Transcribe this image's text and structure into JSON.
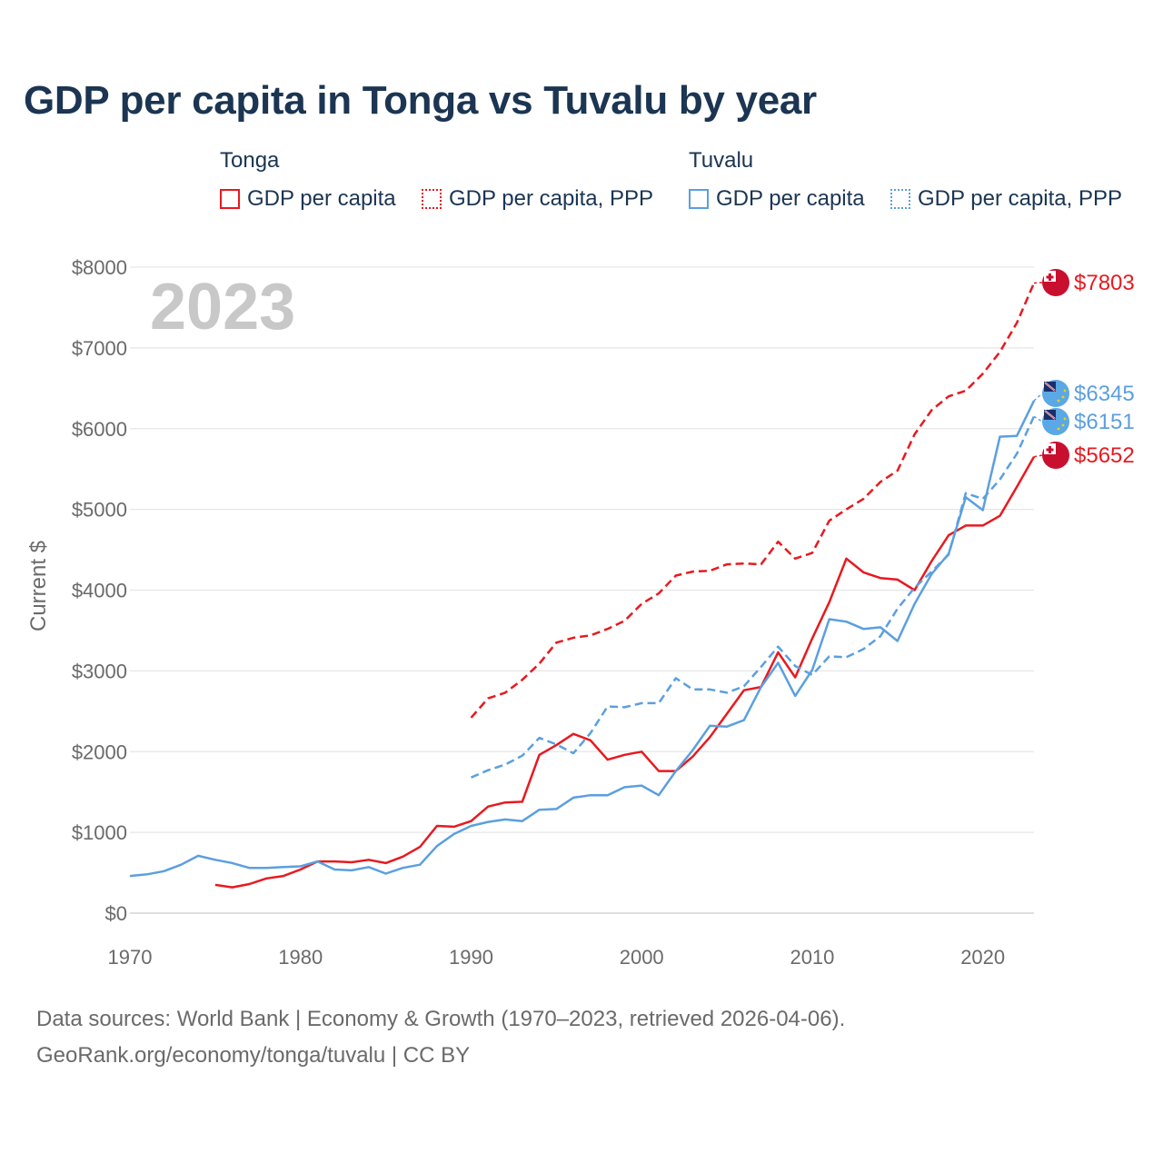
{
  "title": "GDP per capita in Tonga vs Tuvalu by year",
  "legend": {
    "tonga_title": "Tonga",
    "tuvalu_title": "Tuvalu",
    "tonga_gdp": "GDP per capita",
    "tonga_ppp": "GDP per capita, PPP",
    "tuvalu_gdp": "GDP per capita",
    "tuvalu_ppp": "GDP per capita, PPP"
  },
  "footer": {
    "line1": "Data sources: World Bank | Economy & Growth (1970–2023, retrieved 2026-04-06).",
    "line2": "GeoRank.org/economy/tonga/tuvalu | CC BY"
  },
  "colors": {
    "tonga": "#e8191f",
    "tuvalu": "#5b9fe0",
    "grid": "#e6e6e6",
    "axis_text": "#6a6a6a",
    "year_watermark": "#c8c8c8"
  },
  "icons": {
    "tonga_flag": "tonga-flag-icon",
    "tuvalu_flag": "tuvalu-flag-icon"
  },
  "chart_data": {
    "type": "line",
    "title": "GDP per capita in Tonga vs Tuvalu by year",
    "xlabel": "",
    "ylabel": "Current $",
    "year_label": "2023",
    "xlim": [
      1970,
      2023
    ],
    "ylim": [
      0,
      8000
    ],
    "x_ticks": [
      1970,
      1980,
      1990,
      2000,
      2010,
      2020
    ],
    "y_ticks": [
      0,
      1000,
      2000,
      3000,
      4000,
      5000,
      6000,
      7000,
      8000
    ],
    "y_tick_labels": [
      "$0",
      "$1000",
      "$2000",
      "$3000",
      "$4000",
      "$5000",
      "$6000",
      "$7000",
      "$8000"
    ],
    "grid": true,
    "series": [
      {
        "name": "Tonga GDP per capita",
        "country": "Tonga",
        "style": "solid",
        "end_label": "$5652",
        "x": [
          1975,
          1976,
          1977,
          1978,
          1979,
          1980,
          1981,
          1982,
          1983,
          1984,
          1985,
          1986,
          1987,
          1988,
          1989,
          1990,
          1991,
          1992,
          1993,
          1994,
          1995,
          1996,
          1997,
          1998,
          1999,
          2000,
          2001,
          2002,
          2003,
          2004,
          2005,
          2006,
          2007,
          2008,
          2009,
          2010,
          2011,
          2012,
          2013,
          2014,
          2015,
          2016,
          2017,
          2018,
          2019,
          2020,
          2021,
          2022,
          2023
        ],
        "values": [
          350,
          320,
          360,
          430,
          460,
          540,
          640,
          640,
          630,
          660,
          620,
          700,
          820,
          1080,
          1070,
          1140,
          1320,
          1370,
          1380,
          1960,
          2080,
          2220,
          2140,
          1900,
          1960,
          2000,
          1760,
          1760,
          1940,
          2180,
          2470,
          2760,
          2800,
          3230,
          2920,
          3400,
          3850,
          4390,
          4220,
          4150,
          4130,
          4000,
          4360,
          4680,
          4800,
          4800,
          4920,
          5280,
          5652
        ]
      },
      {
        "name": "Tonga GDP per capita, PPP",
        "country": "Tonga",
        "style": "dashed",
        "end_label": "$7803",
        "x": [
          1990,
          1991,
          1992,
          1993,
          1994,
          1995,
          1996,
          1997,
          1998,
          1999,
          2000,
          2001,
          2002,
          2003,
          2004,
          2005,
          2006,
          2007,
          2008,
          2009,
          2010,
          2011,
          2012,
          2013,
          2014,
          2015,
          2016,
          2017,
          2018,
          2019,
          2020,
          2021,
          2022,
          2023
        ],
        "values": [
          2420,
          2660,
          2730,
          2890,
          3090,
          3350,
          3410,
          3440,
          3520,
          3620,
          3830,
          3960,
          4180,
          4230,
          4240,
          4320,
          4330,
          4320,
          4600,
          4390,
          4460,
          4860,
          5000,
          5130,
          5340,
          5480,
          5930,
          6230,
          6400,
          6470,
          6680,
          6950,
          7310,
          7803
        ]
      },
      {
        "name": "Tuvalu GDP per capita",
        "country": "Tuvalu",
        "style": "solid",
        "end_label": "$6345",
        "x": [
          1970,
          1971,
          1972,
          1973,
          1974,
          1975,
          1976,
          1977,
          1978,
          1979,
          1980,
          1981,
          1982,
          1983,
          1984,
          1985,
          1986,
          1987,
          1988,
          1989,
          1990,
          1991,
          1992,
          1993,
          1994,
          1995,
          1996,
          1997,
          1998,
          1999,
          2000,
          2001,
          2002,
          2003,
          2004,
          2005,
          2006,
          2007,
          2008,
          2009,
          2010,
          2011,
          2012,
          2013,
          2014,
          2015,
          2016,
          2017,
          2018,
          2019,
          2020,
          2021,
          2022,
          2023
        ],
        "values": [
          460,
          480,
          520,
          600,
          710,
          660,
          620,
          560,
          560,
          570,
          580,
          640,
          540,
          530,
          570,
          490,
          560,
          600,
          830,
          980,
          1080,
          1130,
          1160,
          1140,
          1280,
          1290,
          1430,
          1460,
          1460,
          1560,
          1580,
          1460,
          1760,
          2020,
          2320,
          2310,
          2390,
          2800,
          3100,
          2690,
          3010,
          3640,
          3610,
          3520,
          3540,
          3370,
          3830,
          4200,
          4450,
          5150,
          4990,
          5900,
          5910,
          6345
        ]
      },
      {
        "name": "Tuvalu GDP per capita, PPP",
        "country": "Tuvalu",
        "style": "dashed",
        "end_label": "$6151",
        "x": [
          1990,
          1991,
          1992,
          1993,
          1994,
          1995,
          1996,
          1997,
          1998,
          1999,
          2000,
          2001,
          2002,
          2003,
          2004,
          2005,
          2006,
          2007,
          2008,
          2009,
          2010,
          2011,
          2012,
          2013,
          2014,
          2015,
          2016,
          2017,
          2018,
          2019,
          2020,
          2021,
          2022,
          2023
        ],
        "values": [
          1680,
          1770,
          1840,
          1950,
          2170,
          2090,
          1980,
          2230,
          2560,
          2550,
          2600,
          2600,
          2910,
          2770,
          2770,
          2730,
          2810,
          3050,
          3300,
          3060,
          2950,
          3180,
          3170,
          3270,
          3430,
          3770,
          4030,
          4230,
          4440,
          5200,
          5130,
          5370,
          5690,
          6151
        ]
      }
    ]
  }
}
